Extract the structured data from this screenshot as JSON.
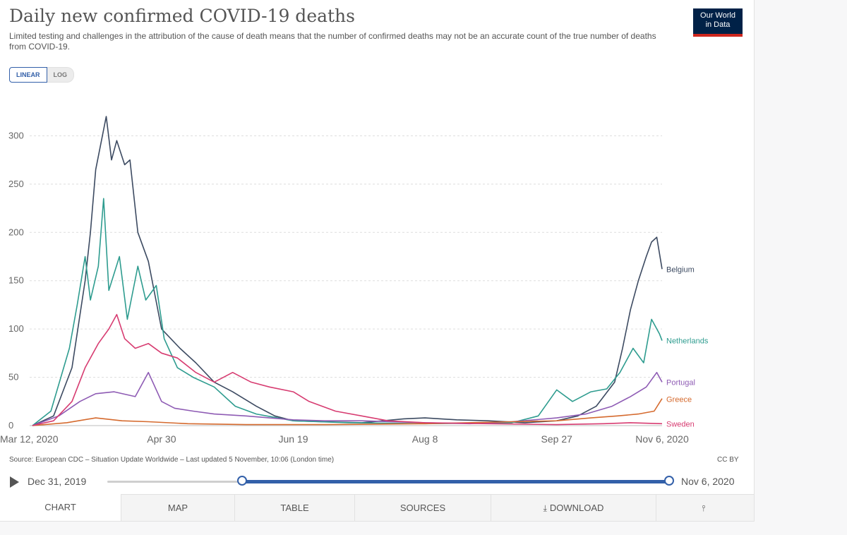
{
  "header": {
    "title": "Daily new confirmed COVID-19 deaths",
    "subtitle": "Limited testing and challenges in the attribution of the cause of death means that the number of confirmed deaths may not be an accurate count of the true number of deaths from COVID-19.",
    "logo_line1": "Our World",
    "logo_line2": "in Data",
    "logo_color": "#002147",
    "logo_accent": "#ce261e"
  },
  "scale": {
    "linear_label": "LINEAR",
    "log_label": "LOG",
    "selected": "LINEAR"
  },
  "footer": {
    "source": "Source: European CDC – Situation Update Worldwide – Last updated 5 November, 10:06 (London time)",
    "license": "CC BY"
  },
  "timeline": {
    "start_label": "Dec 31, 2019",
    "end_label": "Nov 6, 2020",
    "selected_start_fraction": 0.24,
    "selected_end_fraction": 1.0,
    "accent": "#3360a9",
    "play_icon": "play-icon"
  },
  "tabs": [
    {
      "label": "CHART",
      "active": true
    },
    {
      "label": "MAP"
    },
    {
      "label": "TABLE"
    },
    {
      "label": "SOURCES"
    },
    {
      "label": "DOWNLOAD",
      "icon": "download-icon"
    },
    {
      "label": "",
      "icon": "share-icon"
    }
  ],
  "chart_data": {
    "type": "line",
    "x_start": "2020-03-12",
    "x_end": "2020-11-06",
    "xticks": [
      "Mar 12, 2020",
      "Apr 30",
      "Jun 19",
      "Aug 8",
      "Sep 27",
      "Nov 6, 2020"
    ],
    "xtick_dates": [
      "2020-03-12",
      "2020-04-30",
      "2020-06-19",
      "2020-08-08",
      "2020-09-27",
      "2020-11-06"
    ],
    "ylim": [
      0,
      320
    ],
    "yticks": [
      0,
      50,
      100,
      150,
      200,
      250,
      300
    ],
    "grid": "horizontal-dashed",
    "legend": "right-end-labels",
    "series": [
      {
        "name": "Belgium",
        "color": "#3c4a61",
        "points": [
          [
            "2020-03-12",
            0
          ],
          [
            "2020-03-20",
            10
          ],
          [
            "2020-03-27",
            60
          ],
          [
            "2020-04-01",
            150
          ],
          [
            "2020-04-03",
            200
          ],
          [
            "2020-04-05",
            265
          ],
          [
            "2020-04-09",
            320
          ],
          [
            "2020-04-11",
            275
          ],
          [
            "2020-04-13",
            295
          ],
          [
            "2020-04-16",
            270
          ],
          [
            "2020-04-18",
            275
          ],
          [
            "2020-04-21",
            200
          ],
          [
            "2020-04-25",
            170
          ],
          [
            "2020-04-30",
            100
          ],
          [
            "2020-05-07",
            80
          ],
          [
            "2020-05-13",
            65
          ],
          [
            "2020-05-20",
            45
          ],
          [
            "2020-05-27",
            35
          ],
          [
            "2020-06-05",
            20
          ],
          [
            "2020-06-12",
            10
          ],
          [
            "2020-06-19",
            5
          ],
          [
            "2020-06-30",
            4
          ],
          [
            "2020-07-15",
            3
          ],
          [
            "2020-07-31",
            7
          ],
          [
            "2020-08-08",
            8
          ],
          [
            "2020-08-20",
            6
          ],
          [
            "2020-09-01",
            5
          ],
          [
            "2020-09-15",
            3
          ],
          [
            "2020-09-27",
            5
          ],
          [
            "2020-10-05",
            10
          ],
          [
            "2020-10-12",
            20
          ],
          [
            "2020-10-19",
            45
          ],
          [
            "2020-10-22",
            80
          ],
          [
            "2020-10-25",
            120
          ],
          [
            "2020-10-28",
            150
          ],
          [
            "2020-10-31",
            175
          ],
          [
            "2020-11-02",
            190
          ],
          [
            "2020-11-04",
            195
          ],
          [
            "2020-11-06",
            162
          ]
        ]
      },
      {
        "name": "Netherlands",
        "color": "#2e9c8f",
        "points": [
          [
            "2020-03-12",
            0
          ],
          [
            "2020-03-19",
            15
          ],
          [
            "2020-03-26",
            80
          ],
          [
            "2020-03-29",
            125
          ],
          [
            "2020-04-01",
            175
          ],
          [
            "2020-04-03",
            130
          ],
          [
            "2020-04-06",
            165
          ],
          [
            "2020-04-08",
            235
          ],
          [
            "2020-04-10",
            140
          ],
          [
            "2020-04-14",
            175
          ],
          [
            "2020-04-17",
            110
          ],
          [
            "2020-04-21",
            165
          ],
          [
            "2020-04-24",
            130
          ],
          [
            "2020-04-28",
            145
          ],
          [
            "2020-05-01",
            90
          ],
          [
            "2020-05-06",
            60
          ],
          [
            "2020-05-12",
            50
          ],
          [
            "2020-05-20",
            40
          ],
          [
            "2020-05-28",
            20
          ],
          [
            "2020-06-05",
            12
          ],
          [
            "2020-06-19",
            5
          ],
          [
            "2020-07-10",
            3
          ],
          [
            "2020-08-08",
            2
          ],
          [
            "2020-09-10",
            3
          ],
          [
            "2020-09-20",
            10
          ],
          [
            "2020-09-27",
            37
          ],
          [
            "2020-10-03",
            25
          ],
          [
            "2020-10-10",
            35
          ],
          [
            "2020-10-16",
            38
          ],
          [
            "2020-10-21",
            55
          ],
          [
            "2020-10-26",
            80
          ],
          [
            "2020-10-30",
            65
          ],
          [
            "2020-11-02",
            110
          ],
          [
            "2020-11-05",
            95
          ],
          [
            "2020-11-06",
            88
          ]
        ]
      },
      {
        "name": "Portugal",
        "color": "#8e5bb4",
        "points": [
          [
            "2020-03-12",
            0
          ],
          [
            "2020-03-22",
            10
          ],
          [
            "2020-03-30",
            25
          ],
          [
            "2020-04-05",
            33
          ],
          [
            "2020-04-12",
            35
          ],
          [
            "2020-04-20",
            30
          ],
          [
            "2020-04-25",
            55
          ],
          [
            "2020-04-30",
            25
          ],
          [
            "2020-05-05",
            18
          ],
          [
            "2020-05-12",
            15
          ],
          [
            "2020-05-20",
            12
          ],
          [
            "2020-06-01",
            10
          ],
          [
            "2020-06-10",
            8
          ],
          [
            "2020-06-19",
            6
          ],
          [
            "2020-07-01",
            5
          ],
          [
            "2020-07-15",
            5
          ],
          [
            "2020-08-08",
            3
          ],
          [
            "2020-08-25",
            2
          ],
          [
            "2020-09-10",
            4
          ],
          [
            "2020-09-27",
            8
          ],
          [
            "2020-10-08",
            12
          ],
          [
            "2020-10-18",
            20
          ],
          [
            "2020-10-25",
            30
          ],
          [
            "2020-10-31",
            40
          ],
          [
            "2020-11-04",
            55
          ],
          [
            "2020-11-06",
            45
          ]
        ]
      },
      {
        "name": "Greece",
        "color": "#d56a2e",
        "points": [
          [
            "2020-03-12",
            0
          ],
          [
            "2020-03-25",
            3
          ],
          [
            "2020-04-05",
            8
          ],
          [
            "2020-04-15",
            5
          ],
          [
            "2020-04-25",
            4
          ],
          [
            "2020-05-10",
            2
          ],
          [
            "2020-06-01",
            1
          ],
          [
            "2020-07-01",
            1
          ],
          [
            "2020-08-08",
            2
          ],
          [
            "2020-09-10",
            4
          ],
          [
            "2020-09-27",
            5
          ],
          [
            "2020-10-10",
            8
          ],
          [
            "2020-10-20",
            10
          ],
          [
            "2020-10-28",
            12
          ],
          [
            "2020-11-03",
            15
          ],
          [
            "2020-11-06",
            28
          ]
        ]
      },
      {
        "name": "Sweden",
        "color": "#d73c71",
        "points": [
          [
            "2020-03-12",
            0
          ],
          [
            "2020-03-20",
            5
          ],
          [
            "2020-03-27",
            25
          ],
          [
            "2020-04-01",
            60
          ],
          [
            "2020-04-06",
            85
          ],
          [
            "2020-04-10",
            100
          ],
          [
            "2020-04-13",
            115
          ],
          [
            "2020-04-16",
            90
          ],
          [
            "2020-04-20",
            80
          ],
          [
            "2020-04-25",
            85
          ],
          [
            "2020-04-30",
            75
          ],
          [
            "2020-05-06",
            70
          ],
          [
            "2020-05-13",
            55
          ],
          [
            "2020-05-20",
            45
          ],
          [
            "2020-05-27",
            55
          ],
          [
            "2020-06-03",
            45
          ],
          [
            "2020-06-10",
            40
          ],
          [
            "2020-06-19",
            35
          ],
          [
            "2020-06-25",
            25
          ],
          [
            "2020-07-05",
            15
          ],
          [
            "2020-07-15",
            10
          ],
          [
            "2020-07-25",
            5
          ],
          [
            "2020-08-08",
            3
          ],
          [
            "2020-09-01",
            2
          ],
          [
            "2020-09-27",
            1
          ],
          [
            "2020-10-15",
            2
          ],
          [
            "2020-10-25",
            3
          ],
          [
            "2020-11-06",
            2
          ]
        ]
      }
    ]
  }
}
